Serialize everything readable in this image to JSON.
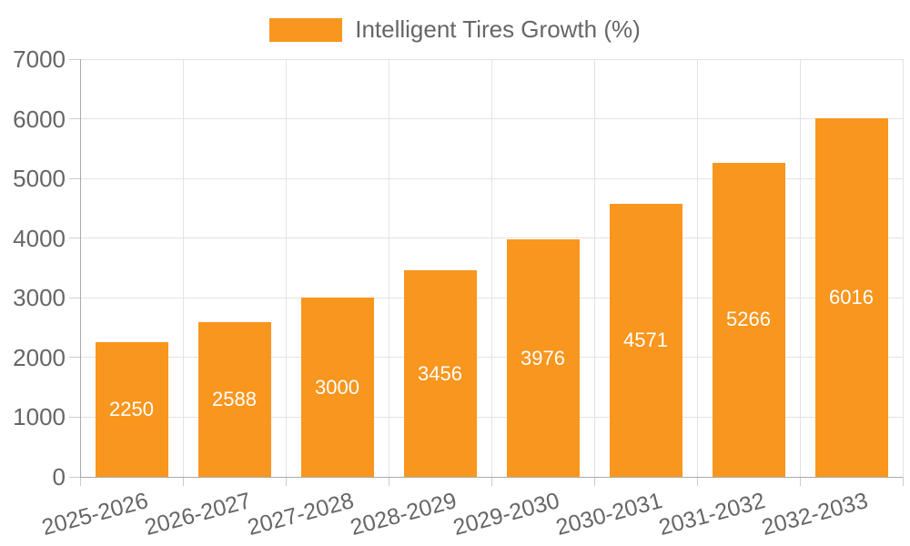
{
  "legend": {
    "label": "Intelligent Tires Growth (%)"
  },
  "chart_data": {
    "type": "bar",
    "title": "Intelligent Tires Growth (%)",
    "categories": [
      "2025-2026",
      "2026-2027",
      "2027-2028",
      "2028-2029",
      "2029-2030",
      "2030-2031",
      "2031-2032",
      "2032-2033"
    ],
    "series": [
      {
        "name": "Intelligent Tires Growth (%)",
        "values": [
          2250,
          2588,
          3000,
          3456,
          3976,
          4571,
          5266,
          6016
        ]
      }
    ],
    "value_labels": [
      "2250",
      "2588",
      "3000",
      "3456",
      "3976",
      "4571",
      "5266",
      "6016"
    ],
    "xlabel": "",
    "ylabel": "",
    "ylim": [
      0,
      7000
    ],
    "ytick_interval": 1000,
    "yticks": [
      "0",
      "1000",
      "2000",
      "3000",
      "4000",
      "5000",
      "6000",
      "7000"
    ],
    "grid": true,
    "x_label_rotation_deg": -15,
    "legend_position": "top-center",
    "colors": {
      "bar": "#F8961E",
      "value_label": "#FFFFFF",
      "axis_text": "#666666",
      "axis_line": "#AAAAAA",
      "tick_line": "#CCCCCC",
      "grid_line": "#E3E3E3",
      "background": "#FFFFFF"
    }
  }
}
